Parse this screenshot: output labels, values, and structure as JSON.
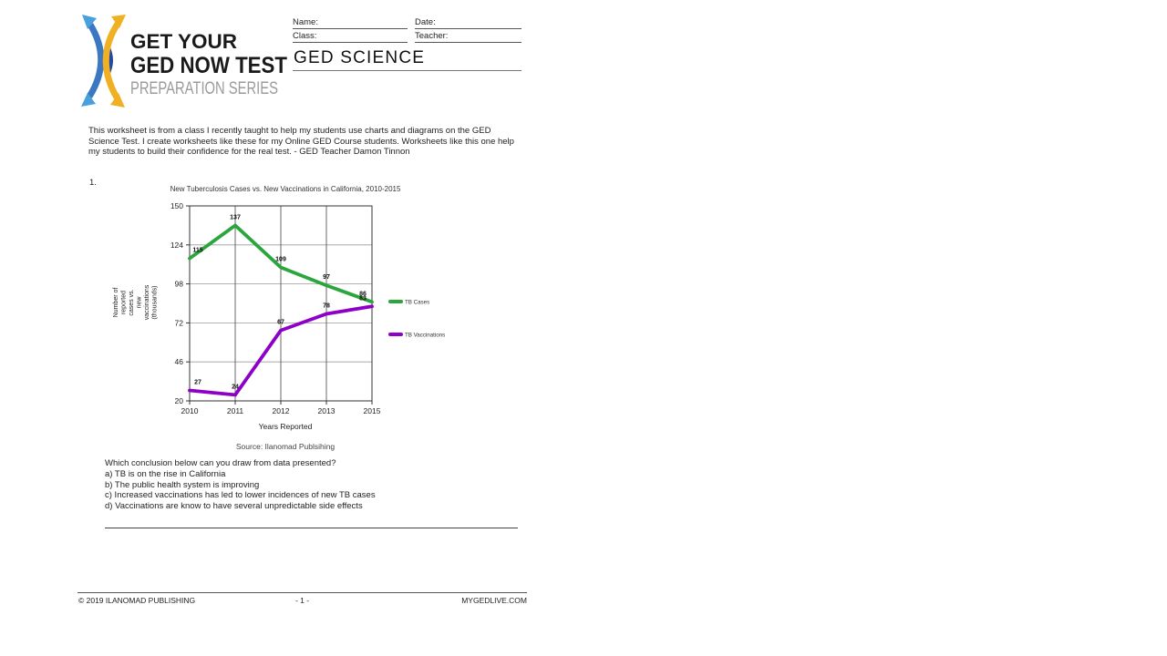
{
  "logo": {
    "line1": "GET YOUR",
    "line2": "GED NOW TEST",
    "line3": "PREPARATION SERIES",
    "colors": {
      "blue": "#3a78c2",
      "light_blue": "#4aa0dc",
      "navy": "#224a9e",
      "gold": "#f0b024"
    }
  },
  "header": {
    "name_label": "Name:",
    "date_label": "Date:",
    "class_label": "Class:",
    "teacher_label": "Teacher:",
    "subject_title": "GED SCIENCE"
  },
  "intro": "This worksheet is from a class I recently taught to help my students use charts and diagrams on the GED Science Test. I create worksheets like these for my Online GED Course students. Worksheets like this one help my students to build their confidence for the real test. - GED Teacher Damon Tinnon",
  "question_number": "1.",
  "chart_data": {
    "type": "line",
    "title": "New Tuberculosis Cases vs. New Vaccinations in California, 2010-2015",
    "xlabel": "Years Reported",
    "ylabel": "Number of reported cases vs. new vaccinations (thousands)",
    "ylabel_lines": [
      "Number of",
      "reported",
      "cases vs.",
      "new",
      "vaccinations",
      "(thousands)"
    ],
    "source": "Source: Ilanomad Publsihing",
    "categories": [
      "2010",
      "2011",
      "2012",
      "2013",
      "2015"
    ],
    "y_ticks": [
      150,
      124,
      98,
      72,
      46,
      20
    ],
    "ylim": [
      20,
      150
    ],
    "grid": true,
    "legend_position": "right",
    "series": [
      {
        "name": "TB Cases",
        "color": "#2aa63c",
        "values": [
          115,
          137,
          109,
          97,
          86
        ]
      },
      {
        "name": "TB Vaccinations",
        "color": "#8e00c8",
        "values": [
          27,
          24,
          67,
          78,
          83
        ]
      }
    ]
  },
  "question": {
    "prompt": "Which conclusion below can you draw from data presented?",
    "options": [
      "a) TB is on the rise in California",
      "b) The public health system is improving",
      "c) Increased vaccinations has led to lower incidences of new TB cases",
      "d) Vaccinations are know to have several unpredictable side effects"
    ]
  },
  "footer": {
    "copyright": "© 2019 ILANOMAD PUBLISHING",
    "page_number": "- 1 -",
    "site": "MYGEDLIVE.COM"
  }
}
